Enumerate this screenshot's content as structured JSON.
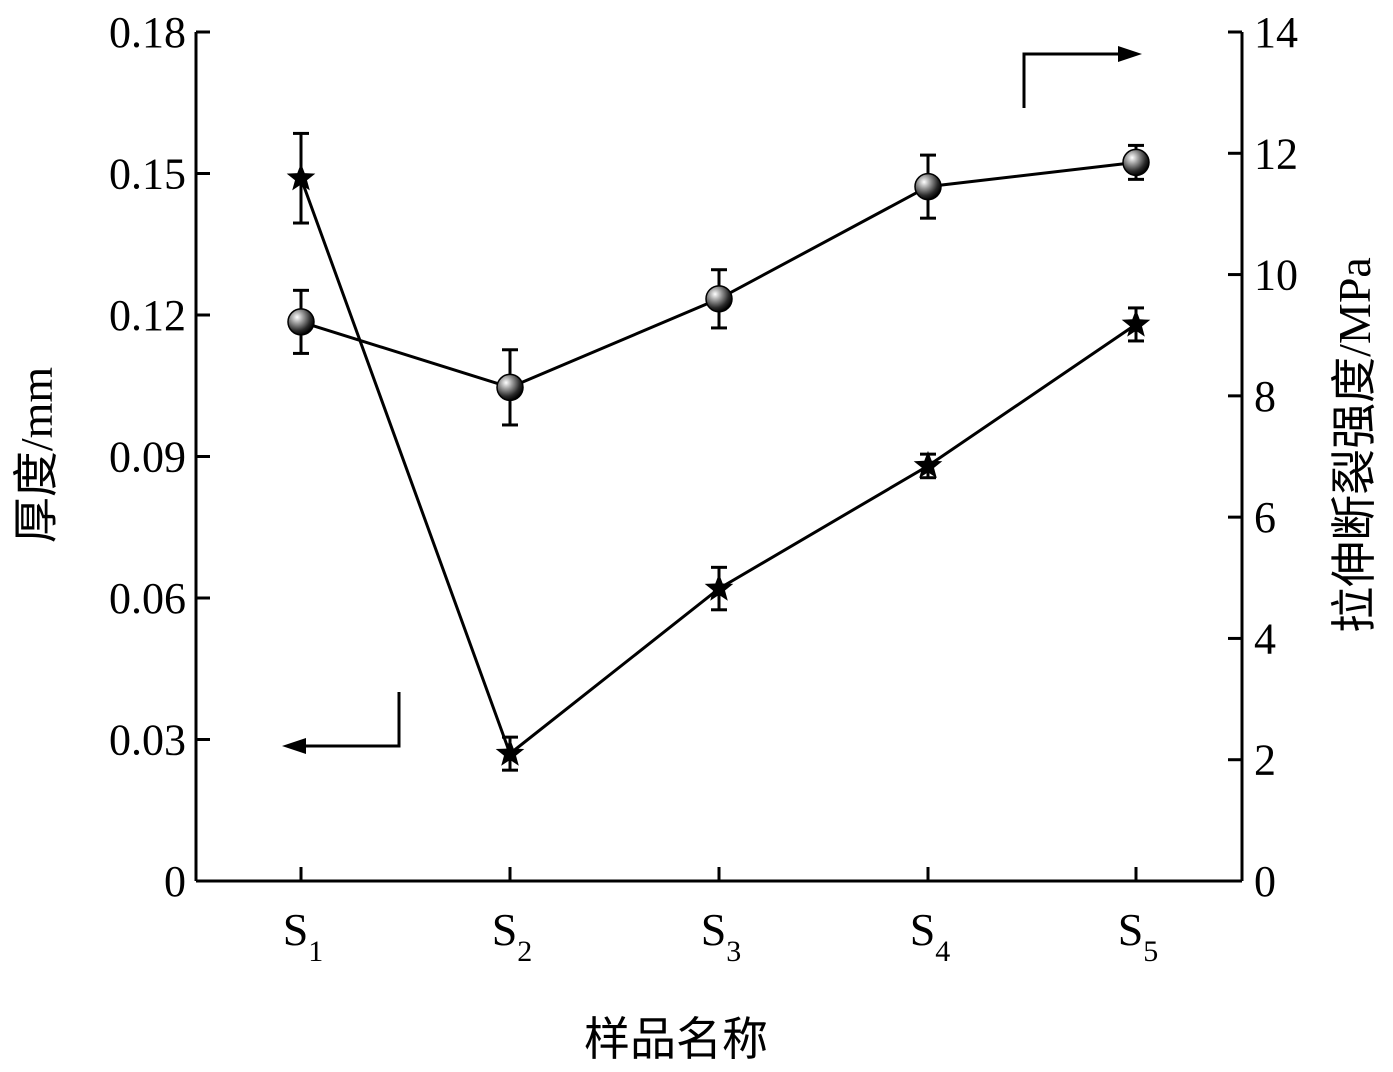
{
  "chart_data": {
    "type": "line",
    "xlabel": "样品名称",
    "categories": [
      {
        "main": "S",
        "sub": "1"
      },
      {
        "main": "S",
        "sub": "2"
      },
      {
        "main": "S",
        "sub": "3"
      },
      {
        "main": "S",
        "sub": "4"
      },
      {
        "main": "S",
        "sub": "5"
      }
    ],
    "y_left": {
      "label": "厚度/mm",
      "range": [
        0,
        0.18
      ],
      "ticks": [
        "0",
        "0.03",
        "0.06",
        "0.09",
        "0.12",
        "0.15",
        "0.18"
      ]
    },
    "y_right": {
      "label": "拉伸断裂强度/MPa",
      "range": [
        0,
        14
      ],
      "ticks": [
        "0",
        "2",
        "4",
        "6",
        "8",
        "10",
        "12",
        "14"
      ]
    },
    "series": [
      {
        "axis": "left",
        "marker": "star",
        "values": [
          0.149,
          0.027,
          0.062,
          0.088,
          0.118
        ],
        "errors": [
          0.0095,
          0.0035,
          0.0045,
          0.0025,
          0.0035
        ]
      },
      {
        "axis": "right",
        "marker": "sphere",
        "values": [
          9.22,
          8.14,
          9.6,
          11.45,
          11.85
        ],
        "errors": [
          0.52,
          0.62,
          0.48,
          0.52,
          0.28
        ]
      }
    ],
    "indicators": [
      {
        "points_to": "left",
        "near_category": 0
      },
      {
        "points_to": "right",
        "near_category": 4
      }
    ],
    "grid": false,
    "legend": "none"
  }
}
